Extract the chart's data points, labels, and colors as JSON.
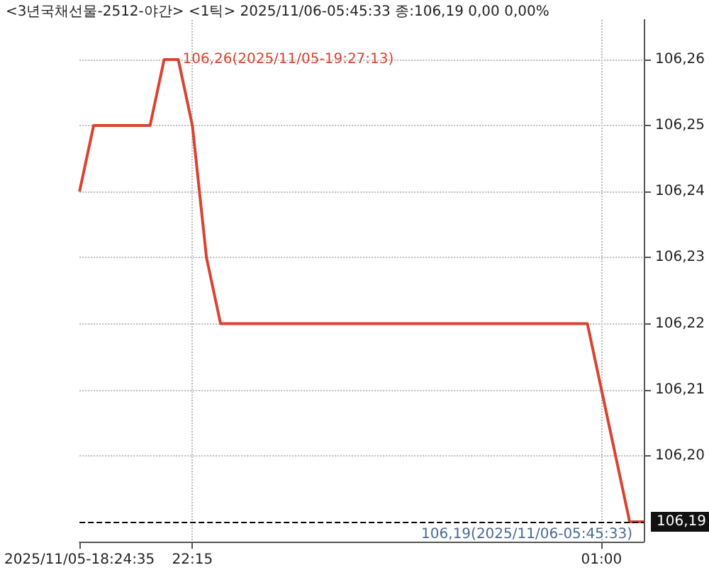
{
  "chart_data": {
    "type": "line",
    "title": "<3년국채선물-2512-야간> <1틱> 2025/11/06-05:45:33 종:106,19 0,00 0,00%",
    "categories": [
      "2025/11/05-18:24:35",
      null,
      null,
      null,
      null,
      null,
      null,
      null,
      "22:15",
      null,
      null,
      null,
      null,
      null,
      null,
      null,
      null,
      null,
      null,
      null,
      null,
      null,
      null,
      null,
      null,
      null,
      null,
      null,
      null,
      null,
      null,
      null,
      null,
      null,
      null,
      null,
      null,
      "01:00",
      null,
      null,
      null
    ],
    "series": [
      {
        "color": "#d9432f",
        "values": [
          106.24,
          106.25,
          106.25,
          106.25,
          106.25,
          106.25,
          106.26,
          106.26,
          106.25,
          106.23,
          106.22,
          106.22,
          106.22,
          106.22,
          106.22,
          106.22,
          106.22,
          106.22,
          106.22,
          106.22,
          106.22,
          106.22,
          106.22,
          106.22,
          106.22,
          106.22,
          106.22,
          106.22,
          106.22,
          106.22,
          106.22,
          106.22,
          106.22,
          106.22,
          106.22,
          106.22,
          106.22,
          106.21,
          106.2,
          106.19,
          106.19
        ]
      }
    ],
    "ylim": [
      106.187,
      106.266
    ],
    "yticks": [
      {
        "value": 106.2,
        "label": "106,20"
      },
      {
        "value": 106.21,
        "label": "106,21"
      },
      {
        "value": 106.22,
        "label": "106,22"
      },
      {
        "value": 106.23,
        "label": "106,23"
      },
      {
        "value": 106.24,
        "label": "106,24"
      },
      {
        "value": 106.25,
        "label": "106,25"
      },
      {
        "value": 106.26,
        "label": "106,26"
      }
    ],
    "ref_lines": [
      {
        "axis": "y",
        "value": 106.19,
        "label": "106,19",
        "line_style": "dashed",
        "color": "#000000"
      }
    ],
    "annotations": [
      "106,26(2025/11/05-19:27:13)",
      {
        "text": "106,19(2025/11/06-05:45:33)",
        "y": 106.19
      }
    ],
    "grid": true,
    "marker": "none",
    "line_style": "solid"
  }
}
